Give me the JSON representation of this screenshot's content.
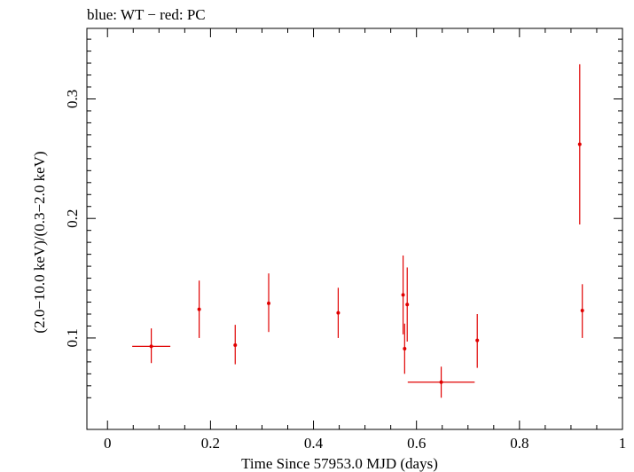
{
  "chart_data": {
    "type": "scatter",
    "title": "blue: WT − red: PC",
    "xlabel": "Time Since 57953.0 MJD (days)",
    "ylabel": "(2.0−10.0 keV)/(0.3−2.0 keV)",
    "xlim": [
      -0.04,
      1.0
    ],
    "ylim": [
      0.0235,
      0.359
    ],
    "x_ticks": [
      {
        "value": 0,
        "label": "0"
      },
      {
        "value": 0.2,
        "label": "0.2"
      },
      {
        "value": 0.4,
        "label": "0.4"
      },
      {
        "value": 0.6,
        "label": "0.6"
      },
      {
        "value": 0.8,
        "label": "0.8"
      },
      {
        "value": 1.0,
        "label": "1"
      }
    ],
    "x_minor_ticks": [
      0.05,
      0.1,
      0.15,
      0.25,
      0.3,
      0.35,
      0.45,
      0.5,
      0.55,
      0.65,
      0.7,
      0.75,
      0.85,
      0.9,
      0.95
    ],
    "y_ticks": [
      {
        "value": 0.1,
        "label": "0.1"
      },
      {
        "value": 0.2,
        "label": "0.2"
      },
      {
        "value": 0.3,
        "label": "0.3"
      }
    ],
    "y_minor_ticks": [
      0.05,
      0.06,
      0.07,
      0.08,
      0.09,
      0.11,
      0.12,
      0.13,
      0.14,
      0.15,
      0.16,
      0.17,
      0.18,
      0.19,
      0.21,
      0.22,
      0.23,
      0.24,
      0.25,
      0.26,
      0.27,
      0.28,
      0.29,
      0.31,
      0.32,
      0.33,
      0.34,
      0.35
    ],
    "grid": false,
    "series": [
      {
        "name": "PC",
        "color": "#e00000",
        "points": [
          {
            "x": 0.085,
            "y": 0.093,
            "xerr": 0.037,
            "yerr_low": 0.014,
            "yerr_high": 0.015
          },
          {
            "x": 0.178,
            "y": 0.124,
            "xerr": 0.0,
            "yerr_low": 0.024,
            "yerr_high": 0.024
          },
          {
            "x": 0.248,
            "y": 0.094,
            "xerr": 0.0,
            "yerr_low": 0.016,
            "yerr_high": 0.017
          },
          {
            "x": 0.313,
            "y": 0.129,
            "xerr": 0.0,
            "yerr_low": 0.024,
            "yerr_high": 0.025
          },
          {
            "x": 0.448,
            "y": 0.121,
            "xerr": 0.0,
            "yerr_low": 0.021,
            "yerr_high": 0.021
          },
          {
            "x": 0.574,
            "y": 0.136,
            "xerr": 0.0,
            "yerr_low": 0.033,
            "yerr_high": 0.033
          },
          {
            "x": 0.577,
            "y": 0.091,
            "xerr": 0.0,
            "yerr_low": 0.021,
            "yerr_high": 0.021
          },
          {
            "x": 0.582,
            "y": 0.128,
            "xerr": 0.0,
            "yerr_low": 0.031,
            "yerr_high": 0.031
          },
          {
            "x": 0.648,
            "y": 0.063,
            "xerr": 0.065,
            "yerr_low": 0.013,
            "yerr_high": 0.013
          },
          {
            "x": 0.718,
            "y": 0.098,
            "xerr": 0.0,
            "yerr_low": 0.023,
            "yerr_high": 0.022
          },
          {
            "x": 0.917,
            "y": 0.262,
            "xerr": 0.0,
            "yerr_low": 0.067,
            "yerr_high": 0.067
          },
          {
            "x": 0.922,
            "y": 0.123,
            "xerr": 0.0,
            "yerr_low": 0.023,
            "yerr_high": 0.022
          }
        ]
      }
    ]
  }
}
